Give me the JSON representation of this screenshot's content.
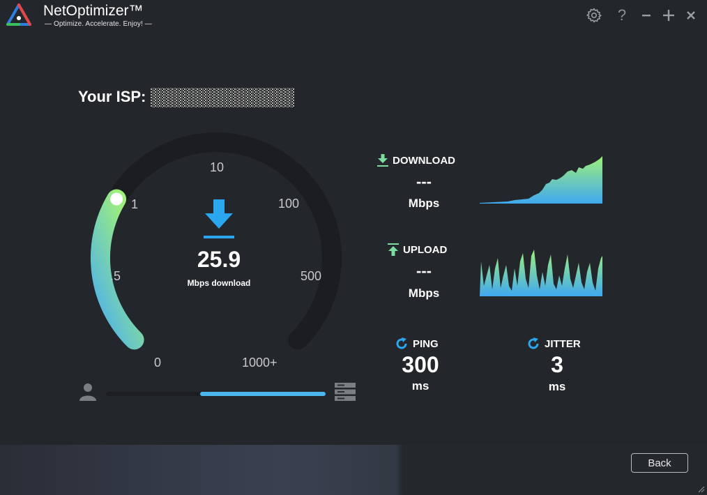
{
  "app": {
    "name": "NetOptimizer™",
    "tagline": "— Optimize. Accelerate. Enjoy! —"
  },
  "window_controls": {
    "settings_icon": "gear-icon",
    "help_label": "?",
    "minimize_icon": "minus-icon",
    "maximize_icon": "plus-icon",
    "close_icon": "x-icon"
  },
  "isp": {
    "label": "Your ISP:",
    "value": "█████████████"
  },
  "gauge": {
    "ticks": [
      "0",
      ".5",
      "1",
      "10",
      "100",
      "500",
      "1000+"
    ],
    "value": "25.9",
    "unit": "Mbps download",
    "icon": "download-arrow-icon",
    "progress_fraction": 0.28,
    "colors": {
      "start": "#4aaef0",
      "end": "#9ef07a",
      "track": "#1b1d20"
    }
  },
  "connection": {
    "client_icon": "user-icon",
    "server_icon": "server-icon",
    "progress_fraction": 0.57
  },
  "download": {
    "title": "DOWNLOAD",
    "value": "---",
    "unit": "Mbps"
  },
  "upload": {
    "title": "UPLOAD",
    "value": "---",
    "unit": "Mbps"
  },
  "ping": {
    "title": "PING",
    "value": "300",
    "unit": "ms"
  },
  "jitter": {
    "title": "JITTER",
    "value": "3",
    "unit": "ms"
  },
  "footer": {
    "back_label": "Back"
  },
  "colors": {
    "accent_blue": "#2aa7ee",
    "accent_green": "#9ef07a",
    "background": "#23262a"
  }
}
